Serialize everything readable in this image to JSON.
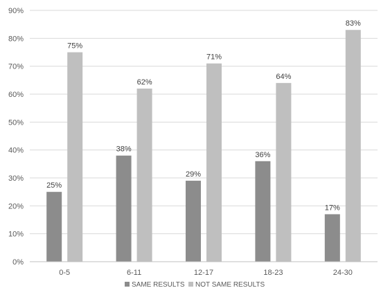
{
  "chart_data": {
    "type": "bar",
    "title": "",
    "xlabel": "",
    "ylabel": "",
    "categories": [
      "0-5",
      "6-11",
      "12-17",
      "18-23",
      "24-30"
    ],
    "series": [
      {
        "name": "SAME RESULTS",
        "values": [
          25,
          38,
          29,
          36,
          17
        ],
        "color": "#8c8c8c"
      },
      {
        "name": "NOT SAME RESULTS",
        "values": [
          75,
          62,
          71,
          64,
          83
        ],
        "color": "#bfbfbf"
      }
    ],
    "data_labels": [
      [
        "25%",
        "38%",
        "29%",
        "36%",
        "17%"
      ],
      [
        "75%",
        "62%",
        "71%",
        "64%",
        "83%"
      ]
    ],
    "ylim": [
      0,
      90
    ],
    "yticks": [
      0,
      10,
      20,
      30,
      40,
      50,
      60,
      70,
      80,
      90
    ],
    "ytick_labels": [
      "0%",
      "10%",
      "20%",
      "30%",
      "40%",
      "50%",
      "60%",
      "70%",
      "80%",
      "90%"
    ],
    "grid": true,
    "legend_position": "bottom"
  }
}
